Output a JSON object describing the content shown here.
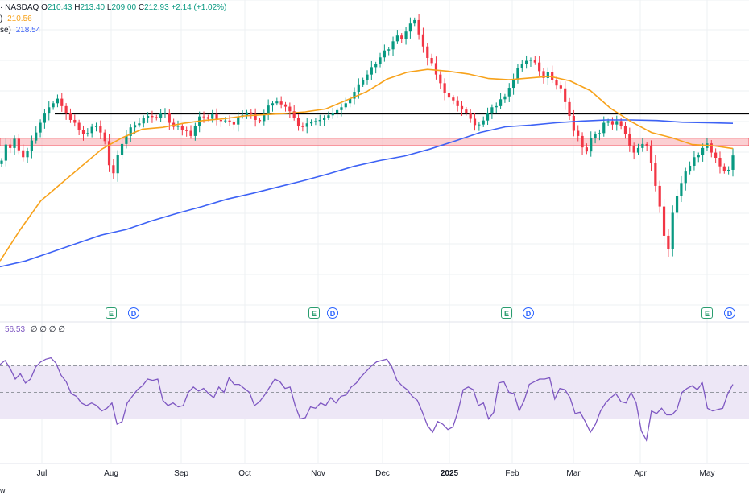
{
  "legend": {
    "main": {
      "symbol": "· NASDAQ",
      "o_label": "O",
      "o": "210.43",
      "h_label": "H",
      "h": "213.40",
      "l_label": "L",
      "l": "209.00",
      "c_label": "C",
      "c": "212.93",
      "change": "+2.14 (+1.02%)"
    },
    "ma50": {
      "label": ")",
      "value": "210.56",
      "color": "#f7a21b"
    },
    "ma200": {
      "label": "se)",
      "value": "218.54",
      "color": "#3d62f5"
    },
    "rsi": {
      "value": "56.53",
      "extras": "∅ ∅ ∅ ∅"
    }
  },
  "events": [
    {
      "type": "E",
      "month": "Aug"
    },
    {
      "type": "D",
      "month": "Aug"
    },
    {
      "type": "E",
      "month": "Nov"
    },
    {
      "type": "D",
      "month": "Nov"
    },
    {
      "type": "E",
      "month": "Feb"
    },
    {
      "type": "D",
      "month": "Feb"
    },
    {
      "type": "E",
      "month": "May"
    },
    {
      "type": "D",
      "month": "May"
    }
  ],
  "corner_text": "w",
  "colors": {
    "up": "#089981",
    "down": "#f23645",
    "resistance": "#000000",
    "support_zone": "#f7a8ad",
    "rsi": "#7e57c2",
    "rsi_band": "#ede7f6"
  },
  "chart_data": {
    "type": "candlestick",
    "x_months": [
      "Jul",
      "Aug",
      "Sep",
      "Oct",
      "Nov",
      "Dec",
      "2025",
      "Feb",
      "Mar",
      "Apr",
      "May"
    ],
    "price_range": [
      185,
      240
    ],
    "horizontal_levels": {
      "resistance": 220.2,
      "support_zone": [
        214.6,
        215.9
      ]
    },
    "ohlc_close_series": [
      212.0,
      214.8,
      214.2,
      215.8,
      213.8,
      212.6,
      213.7,
      215.5,
      216.9,
      218.6,
      220.2,
      221.3,
      222.0,
      222.8,
      221.5,
      220.3,
      219.1,
      218.6,
      217.4,
      216.6,
      216.8,
      217.9,
      218.0,
      216.9,
      215.4,
      211.2,
      209.8,
      213.0,
      214.9,
      216.3,
      217.8,
      218.2,
      218.5,
      219.4,
      219.8,
      219.6,
      219.4,
      220.2,
      220.3,
      218.6,
      217.9,
      218.1,
      217.3,
      217.2,
      216.3,
      218.0,
      219.7,
      219.6,
      219.3,
      220.1,
      219.1,
      218.9,
      219.0,
      218.7,
      218.3,
      219.7,
      219.9,
      220.4,
      220.1,
      219.1,
      218.9,
      220.1,
      221.6,
      222.0,
      222.3,
      221.8,
      221.4,
      220.6,
      219.5,
      218.0,
      217.9,
      218.5,
      218.8,
      218.9,
      219.1,
      219.5,
      219.9,
      220.3,
      220.8,
      221.3,
      222.0,
      222.8,
      224.0,
      225.3,
      226.0,
      227.0,
      228.3,
      228.8,
      230.0,
      231.2,
      231.4,
      232.8,
      233.8,
      233.2,
      234.5,
      235.9,
      236.5,
      234.0,
      231.9,
      229.9,
      229.0,
      227.0,
      225.5,
      223.8,
      223.0,
      222.5,
      221.5,
      220.9,
      220.3,
      219.3,
      218.2,
      218.3,
      219.0,
      220.2,
      221.3,
      221.5,
      222.7,
      223.2,
      224.7,
      226.1,
      228.2,
      228.9,
      229.4,
      229.6,
      229.1,
      227.6,
      226.4,
      227.5,
      226.1,
      225.1,
      224.6,
      222.2,
      219.8,
      217.2,
      216.3,
      214.3,
      213.6,
      215.9,
      216.6,
      216.8,
      218.6,
      218.9,
      218.3,
      218.9,
      218.0,
      216.6,
      214.6,
      213.4,
      214.2,
      214.9,
      214.5,
      211.6,
      207.6,
      204.0,
      198.9,
      196.6,
      202.9,
      205.9,
      208.1,
      210.1,
      211.1,
      212.6,
      213.0,
      214.2,
      215.0,
      213.4,
      212.5,
      211.0,
      210.2,
      210.4,
      212.9
    ],
    "ma50_series": [
      194.5,
      200.0,
      205.0,
      208.0,
      211.0,
      214.0,
      216.0,
      217.5,
      217.8,
      218.5,
      219.0,
      219.3,
      219.8,
      220.0,
      220.2,
      220.5,
      221.0,
      222.5,
      224.0,
      226.2,
      227.4,
      227.9,
      227.6,
      227.1,
      226.3,
      226.1,
      226.4,
      226.7,
      225.9,
      224.2,
      221.1,
      218.8,
      216.9,
      216.0,
      214.8,
      214.6,
      214.1
    ],
    "ma200_series": [
      193.5,
      194.5,
      196.0,
      197.5,
      199.0,
      200.0,
      201.5,
      202.8,
      204.0,
      205.3,
      206.3,
      207.4,
      208.5,
      209.7,
      211.0,
      212.0,
      212.8,
      214.0,
      215.4,
      216.9,
      217.9,
      218.2,
      218.6,
      218.9,
      219.1,
      219.1,
      219.0,
      218.7,
      218.6,
      218.5
    ],
    "rsi": {
      "range": [
        0,
        100
      ],
      "upper": 70,
      "mid": 50,
      "lower": 30,
      "series": [
        71,
        74,
        68,
        60,
        64,
        57,
        60,
        69,
        73,
        75,
        76,
        72,
        63,
        58,
        49,
        47,
        42,
        40,
        42,
        40,
        36,
        38,
        42,
        26,
        28,
        42,
        47,
        52,
        55,
        60,
        59,
        60,
        44,
        40,
        42,
        39,
        40,
        50,
        54,
        51,
        53,
        49,
        46,
        54,
        50,
        61,
        56,
        56,
        53,
        50,
        40,
        43,
        48,
        54,
        60,
        58,
        53,
        54,
        40,
        30,
        31,
        39,
        38,
        42,
        40,
        46,
        42,
        47,
        48,
        54,
        57,
        62,
        66,
        70,
        73,
        74,
        75,
        69,
        59,
        55,
        52,
        47,
        44,
        35,
        25,
        20,
        28,
        26,
        22,
        24,
        36,
        52,
        54,
        52,
        40,
        42,
        30,
        35,
        57,
        58,
        50,
        49,
        36,
        44,
        56,
        58,
        60,
        60,
        61,
        45,
        53,
        52,
        46,
        34,
        35,
        28,
        20,
        26,
        36,
        42,
        46,
        49,
        43,
        42,
        50,
        42,
        21,
        14,
        36,
        34,
        38,
        33,
        33,
        37,
        50,
        53,
        55,
        52,
        57,
        38,
        36,
        37,
        38,
        49,
        56
      ]
    }
  }
}
